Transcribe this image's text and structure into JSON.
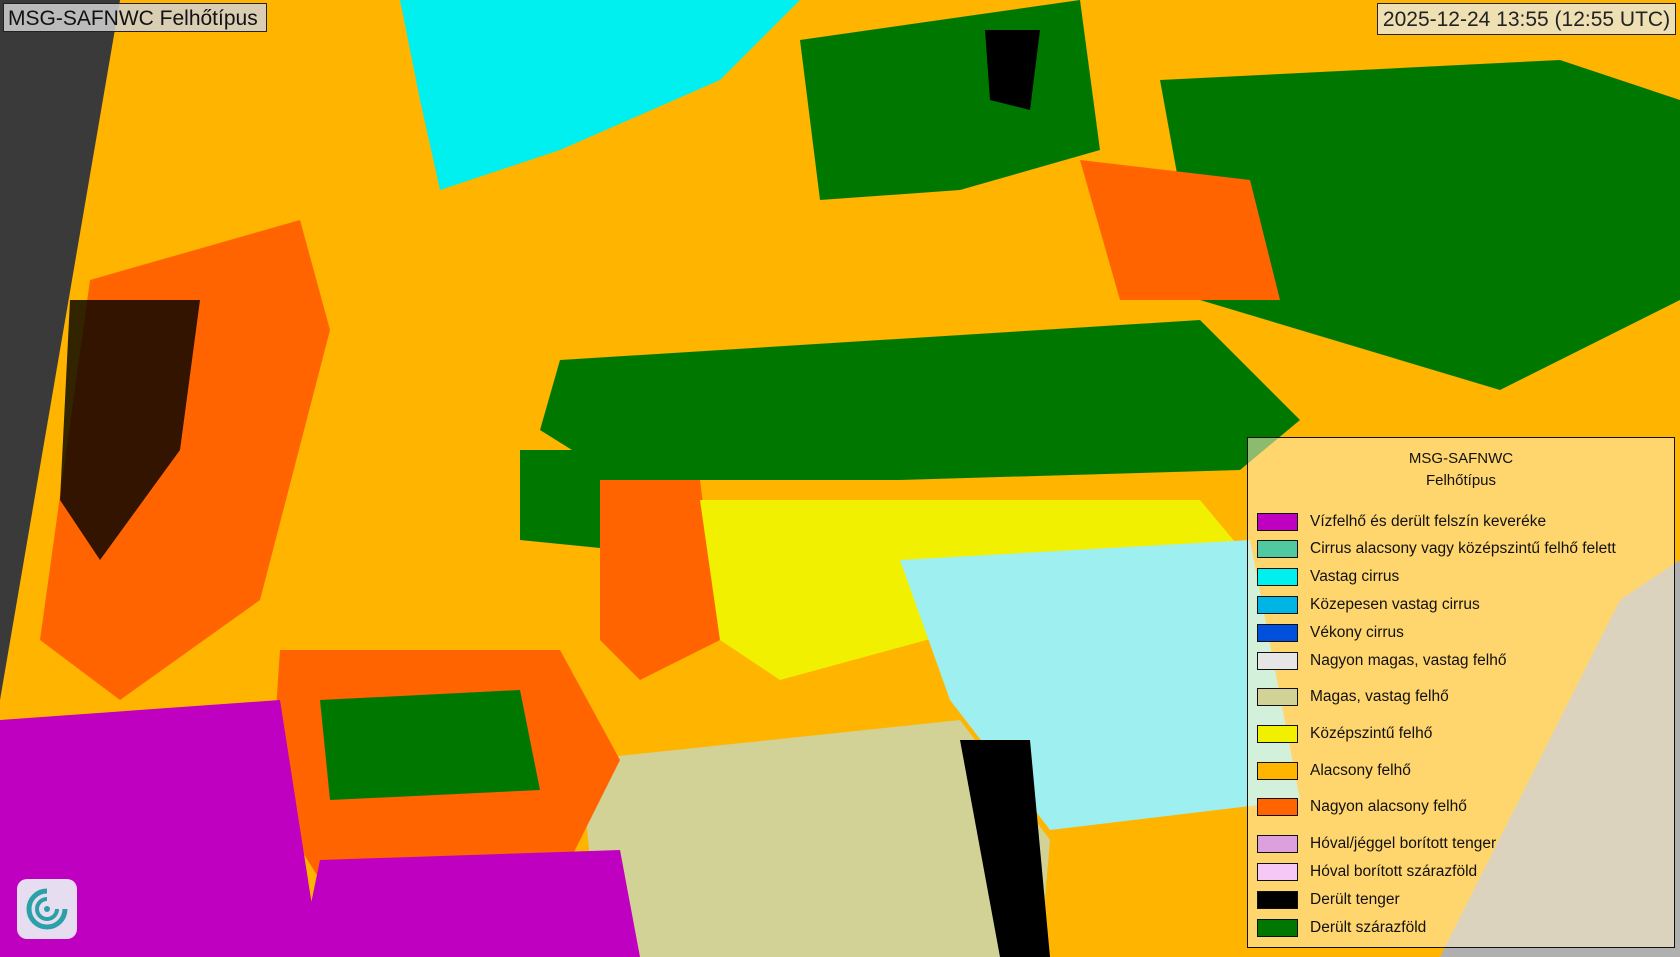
{
  "header": {
    "title": "MSG-SAFNWC Felhőtípus",
    "timestamp": "2025-12-24 13:55 (12:55 UTC)"
  },
  "legend": {
    "title_line1": "MSG-SAFNWC",
    "title_line2": "Felhőtípus",
    "items": [
      {
        "label": "Vízfelhő és derült felszín keveréke",
        "color": "#c000c0"
      },
      {
        "label": "Cirrus alacsony vagy középszintű felhő felett",
        "color": "#50c8a0"
      },
      {
        "label": "Vastag cirrus",
        "color": "#00f0f0"
      },
      {
        "label": "Közepesen vastag cirrus",
        "color": "#00b4e6"
      },
      {
        "label": "Vékony cirrus",
        "color": "#0050dc"
      },
      {
        "label": "Nagyon magas, vastag felhő",
        "color": "#e6e6e6"
      },
      {
        "label": "Magas, vastag felhő",
        "color": "#d2d296"
      },
      {
        "label": "Középszintű felhő",
        "color": "#f0f000"
      },
      {
        "label": "Alacsony felhő",
        "color": "#ffb400"
      },
      {
        "label": "Nagyon alacsony felhő",
        "color": "#ff6400"
      },
      {
        "label": "Hóval/jéggel borított tenger",
        "color": "#dca0dc"
      },
      {
        "label": "Hóval borított szárazföld",
        "color": "#f5c8f5"
      },
      {
        "label": "Derült tenger",
        "color": "#000000"
      },
      {
        "label": "Derült szárazföld",
        "color": "#007800"
      }
    ]
  },
  "logo": {
    "icon": "swirl-logo-icon"
  }
}
